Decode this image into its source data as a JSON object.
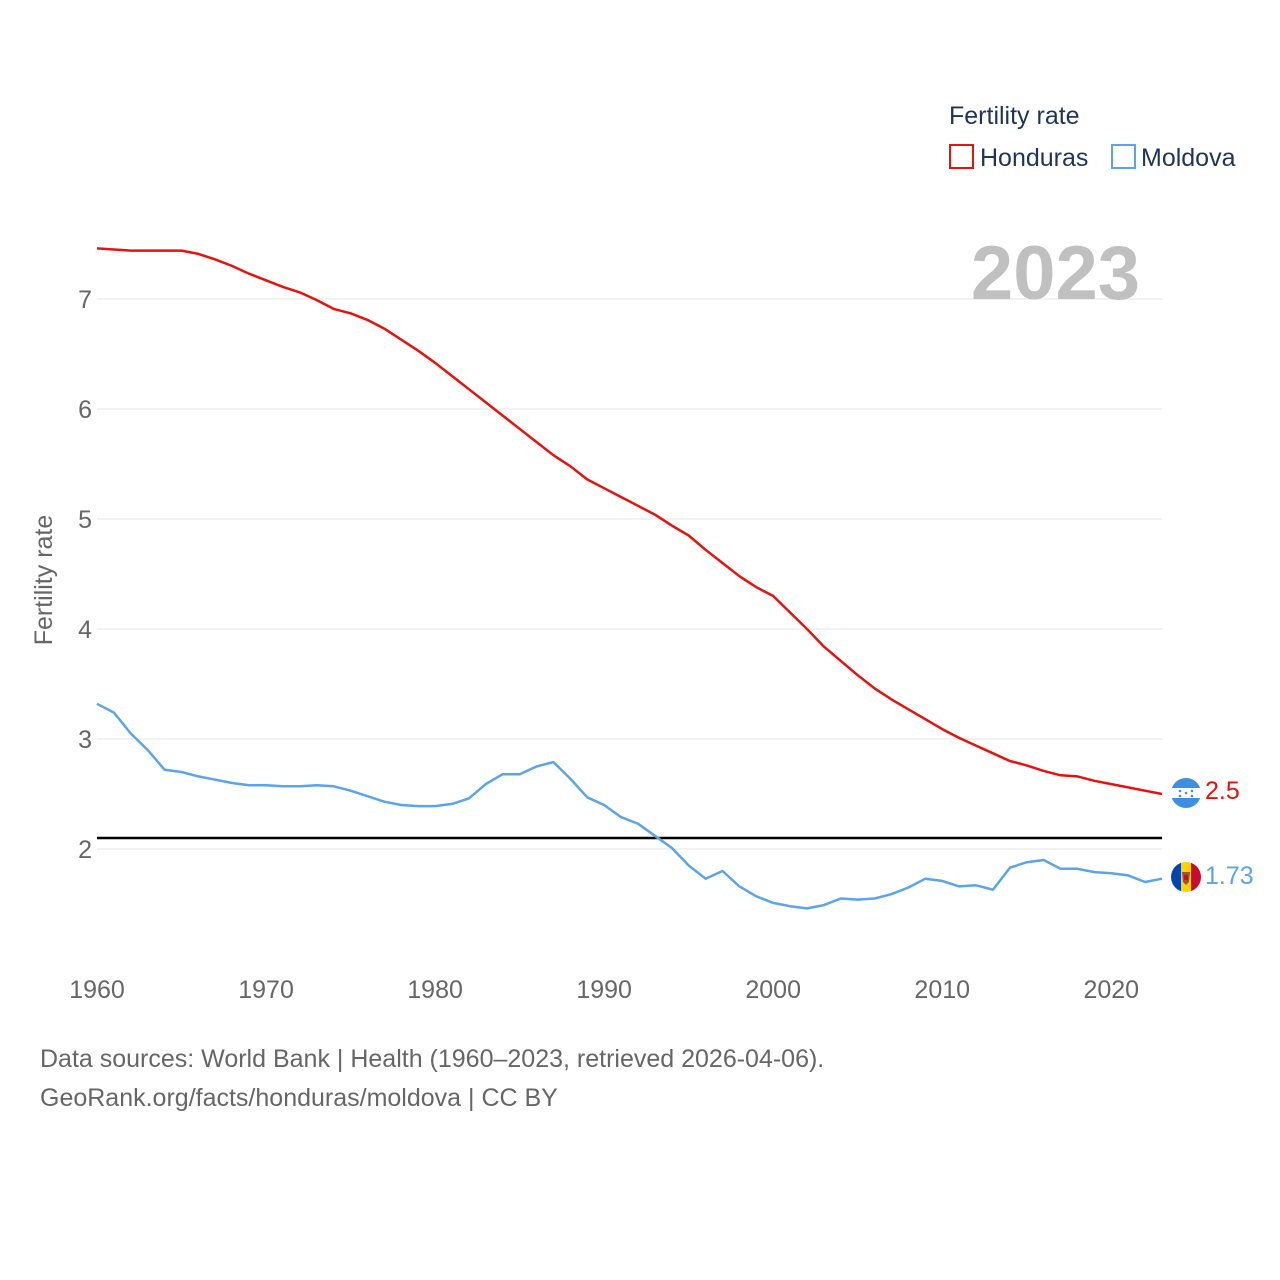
{
  "colors": {
    "honduras": "#e8120c",
    "moldova": "#5aa5e8",
    "grid": "#e6e6e6",
    "axis_text": "#666666",
    "legend_text": "#1d3557",
    "year_label": "#c0c0c0",
    "reference_line": "#000000"
  },
  "chart_data": {
    "type": "line",
    "year_label": "2023",
    "ylabel": "Fertility rate",
    "xlim": [
      1960,
      2023
    ],
    "ylim": [
      1.0,
      7.5
    ],
    "y_ticks": [
      2,
      3,
      4,
      5,
      6,
      7
    ],
    "x_ticks": [
      1960,
      1970,
      1980,
      1990,
      2000,
      2010,
      2020
    ],
    "legend": {
      "title": "Fertility rate",
      "placement": "top-right",
      "entries": [
        "Honduras",
        "Moldova"
      ]
    },
    "reference_line": {
      "y": 2.1
    },
    "x": [
      1960,
      1961,
      1962,
      1963,
      1964,
      1965,
      1966,
      1967,
      1968,
      1969,
      1970,
      1971,
      1972,
      1973,
      1974,
      1975,
      1976,
      1977,
      1978,
      1979,
      1980,
      1981,
      1982,
      1983,
      1984,
      1985,
      1986,
      1987,
      1988,
      1989,
      1990,
      1991,
      1992,
      1993,
      1994,
      1995,
      1996,
      1997,
      1998,
      1999,
      2000,
      2001,
      2002,
      2003,
      2004,
      2005,
      2006,
      2007,
      2008,
      2009,
      2010,
      2011,
      2012,
      2013,
      2014,
      2015,
      2016,
      2017,
      2018,
      2019,
      2020,
      2021,
      2022,
      2023
    ],
    "series": [
      {
        "name": "Honduras",
        "end_label": "2.5",
        "values": [
          7.46,
          7.45,
          7.44,
          7.44,
          7.44,
          7.44,
          7.41,
          7.36,
          7.3,
          7.23,
          7.17,
          7.11,
          7.06,
          6.99,
          6.91,
          6.87,
          6.81,
          6.73,
          6.63,
          6.53,
          6.42,
          6.3,
          6.18,
          6.06,
          5.94,
          5.82,
          5.7,
          5.58,
          5.48,
          5.36,
          5.28,
          5.2,
          5.12,
          5.04,
          4.94,
          4.85,
          4.72,
          4.6,
          4.48,
          4.38,
          4.3,
          4.15,
          4.0,
          3.84,
          3.71,
          3.58,
          3.46,
          3.36,
          3.27,
          3.18,
          3.09,
          3.01,
          2.94,
          2.87,
          2.8,
          2.76,
          2.71,
          2.67,
          2.66,
          2.62,
          2.59,
          2.56,
          2.53,
          2.5
        ]
      },
      {
        "name": "Moldova",
        "end_label": "1.73",
        "values": [
          3.32,
          3.24,
          3.05,
          2.9,
          2.72,
          2.7,
          2.66,
          2.63,
          2.6,
          2.58,
          2.58,
          2.57,
          2.57,
          2.58,
          2.57,
          2.53,
          2.48,
          2.43,
          2.4,
          2.39,
          2.39,
          2.41,
          2.46,
          2.59,
          2.68,
          2.68,
          2.75,
          2.79,
          2.64,
          2.47,
          2.4,
          2.29,
          2.23,
          2.12,
          2.01,
          1.85,
          1.73,
          1.8,
          1.66,
          1.57,
          1.51,
          1.48,
          1.46,
          1.49,
          1.55,
          1.54,
          1.55,
          1.59,
          1.65,
          1.73,
          1.71,
          1.66,
          1.67,
          1.63,
          1.83,
          1.88,
          1.9,
          1.82,
          1.82,
          1.79,
          1.78,
          1.76,
          1.7,
          1.73
        ]
      }
    ]
  },
  "footer": {
    "source_line": "Data sources: World Bank | Health (1960–2023, retrieved 2026-04-06).",
    "attribution_line": "GeoRank.org/facts/honduras/moldova | CC BY"
  }
}
